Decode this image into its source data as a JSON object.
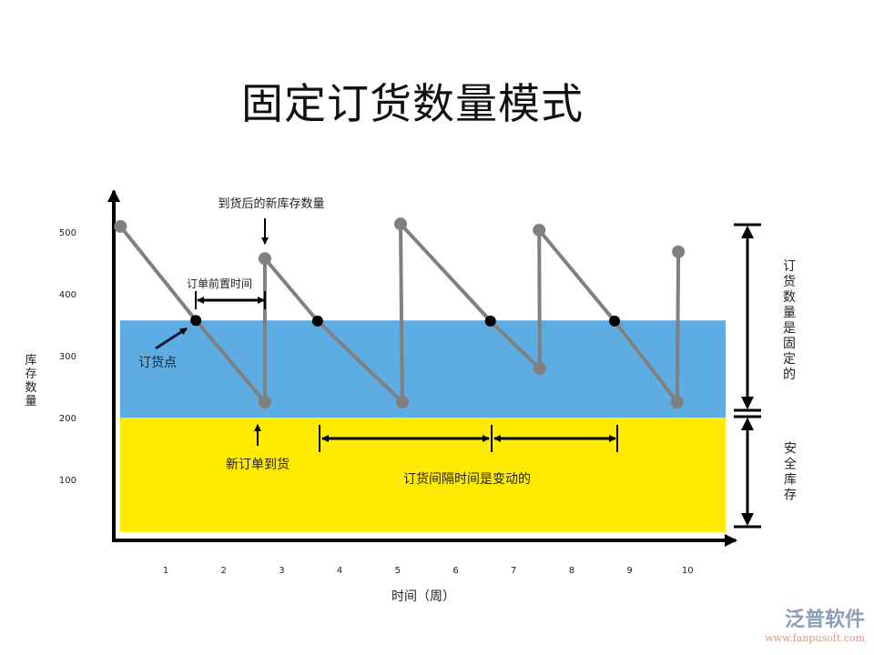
{
  "title": "固定订货数量模式",
  "y_axis_label": "库存数量",
  "x_axis_label": "时间（周）",
  "y_ticks": [
    100,
    200,
    300,
    400,
    500
  ],
  "x_ticks": [
    1,
    2,
    3,
    4,
    5,
    6,
    7,
    8,
    9,
    10
  ],
  "colors": {
    "safety_stock": "#FFEA00",
    "order_band": "#5DADE2",
    "line": "#808080",
    "point": "#808080",
    "reorder_point": "#000000"
  },
  "bands": {
    "safety_stock": [
      15,
      200
    ],
    "order_band": [
      200,
      357
    ]
  },
  "inventory_line": [
    [
      0.22,
      509
    ],
    [
      1.52,
      357
    ],
    [
      2.71,
      225
    ],
    [
      2.71,
      457
    ],
    [
      3.62,
      356
    ],
    [
      5.08,
      225
    ],
    [
      5.05,
      513
    ],
    [
      6.6,
      356
    ],
    [
      7.45,
      279
    ],
    [
      7.44,
      503
    ],
    [
      8.74,
      356
    ],
    [
      9.82,
      225
    ],
    [
      9.84,
      468
    ]
  ],
  "peak_and_trough_points": [
    [
      0.22,
      509
    ],
    [
      2.71,
      225
    ],
    [
      2.71,
      457
    ],
    [
      5.08,
      225
    ],
    [
      5.05,
      513
    ],
    [
      7.45,
      279
    ],
    [
      7.44,
      503
    ],
    [
      9.82,
      225
    ],
    [
      9.84,
      468
    ]
  ],
  "reorder_points": [
    [
      1.52,
      357
    ],
    [
      3.62,
      356
    ],
    [
      6.6,
      356
    ],
    [
      8.74,
      356
    ]
  ],
  "annotations": {
    "new_stock_after_arrival": "到货后的新库存数量",
    "lead_time": "订单前置时间",
    "reorder_point": "订货点",
    "new_order_arrives": "新订单到货",
    "interval_varies": "订货间隔时间是变动的",
    "order_quantity_fixed": "订货数量是固定的",
    "safety_stock": "安全库存"
  },
  "logo": {
    "name": "泛普软件",
    "url": "www.fanpusoft.com"
  }
}
